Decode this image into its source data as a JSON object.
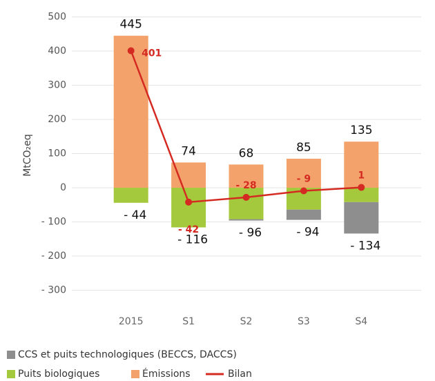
{
  "chart_data": {
    "type": "stacked_bar_line",
    "y_label": "MtCO₂eq",
    "categories": [
      "2015",
      "S1",
      "S2",
      "S3",
      "S4"
    ],
    "series": [
      {
        "name": "Émissions",
        "color": "#f2a26a",
        "values": [
          445,
          74,
          68,
          85,
          135
        ]
      },
      {
        "name": "Puits biologiques",
        "color": "#a5c93c",
        "values": [
          -44,
          -116,
          -92,
          -64,
          -42
        ]
      },
      {
        "name": "CCS et puits technologiques (BECCS, DACCS)",
        "color": "#8e8e8e",
        "values": [
          0,
          0,
          -4,
          -30,
          -92
        ]
      },
      {
        "name": "Bilan",
        "color": "#d42a22",
        "type": "line",
        "values": [
          401,
          -42,
          -28,
          -9,
          1
        ],
        "value_labels": [
          "401",
          "- 42",
          "- 28",
          "- 9",
          "1"
        ]
      }
    ],
    "negative_labels": [
      "- 44",
      "- 116",
      "- 96",
      "- 94",
      "- 134"
    ],
    "ylim": [
      -330,
      520
    ],
    "yticks": [
      500,
      400,
      300,
      200,
      100,
      0,
      {
        "value": -100,
        "label": "- 100"
      },
      {
        "value": -200,
        "label": "- 200"
      },
      {
        "value": -300,
        "label": "- 300"
      }
    ],
    "grid": true
  }
}
